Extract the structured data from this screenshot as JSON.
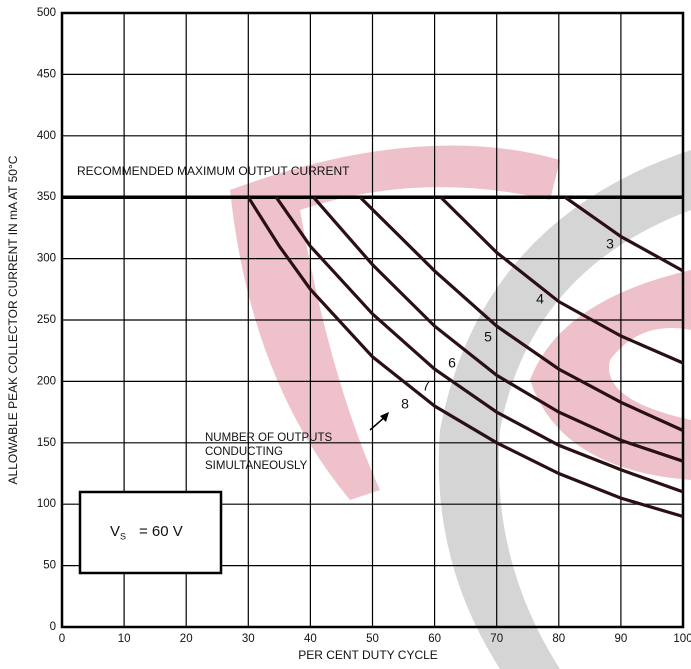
{
  "chart_data": {
    "type": "line",
    "xlabel": "PER CENT DUTY CYCLE",
    "ylabel": "ALLOWABLE PEAK COLLECTOR CURRENT IN mA AT 50°C",
    "xlim": [
      0,
      100
    ],
    "ylim": [
      0,
      500
    ],
    "xticks": [
      0,
      10,
      20,
      30,
      40,
      50,
      60,
      70,
      80,
      90,
      100
    ],
    "yticks": [
      0,
      50,
      100,
      150,
      200,
      250,
      300,
      350,
      400,
      450,
      500
    ],
    "grid": true,
    "reference_line": {
      "value": 350,
      "label": "RECOMMENDED MAXIMUM OUTPUT CURRENT"
    },
    "series_annotation": [
      "NUMBER OF OUTPUTS",
      "CONDUCTING",
      "SIMULTANEOUSLY"
    ],
    "condition": {
      "symbol": "V",
      "subscript": "S",
      "text": "= 60 V"
    },
    "series": [
      {
        "name": "3",
        "x": [
          81,
          90,
          100
        ],
        "values": [
          350,
          318,
          290
        ]
      },
      {
        "name": "4",
        "x": [
          61,
          70,
          80,
          90,
          100
        ],
        "values": [
          350,
          305,
          265,
          237,
          215
        ]
      },
      {
        "name": "5",
        "x": [
          48,
          60,
          70,
          80,
          90,
          100
        ],
        "values": [
          350,
          290,
          245,
          210,
          183,
          160
        ]
      },
      {
        "name": "6",
        "x": [
          40.5,
          50,
          60,
          70,
          80,
          90,
          100
        ],
        "values": [
          350,
          295,
          245,
          205,
          175,
          152,
          135
        ]
      },
      {
        "name": "7",
        "x": [
          34.5,
          40,
          50,
          60,
          70,
          80,
          90,
          100
        ],
        "values": [
          350,
          310,
          255,
          210,
          175,
          148,
          128,
          110
        ]
      },
      {
        "name": "8",
        "x": [
          30,
          35,
          40,
          50,
          60,
          70,
          80,
          90,
          100
        ],
        "values": [
          350,
          310,
          275,
          220,
          180,
          150,
          125,
          105,
          90
        ]
      }
    ]
  }
}
